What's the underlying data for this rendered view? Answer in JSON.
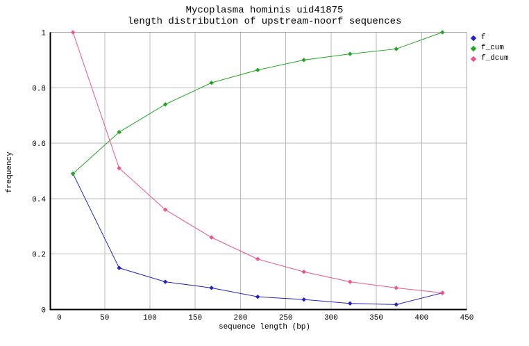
{
  "chart_data": {
    "type": "line",
    "title_line1": "Mycoplasma hominis uid41875",
    "title_line2": "length distribution of upstream-noorf sequences",
    "xlabel": "sequence length (bp)",
    "ylabel": "frequency",
    "xlim": [
      -10,
      450
    ],
    "ylim": [
      0,
      1
    ],
    "xticks": [
      0,
      50,
      100,
      150,
      200,
      250,
      300,
      350,
      400,
      450
    ],
    "yticks": [
      0,
      0.2,
      0.4,
      0.6,
      0.8,
      1
    ],
    "grid": true,
    "legend_position": "top-right-outside",
    "x": [
      15,
      66,
      117,
      168,
      219,
      270,
      321,
      372,
      423
    ],
    "series": [
      {
        "name": "f",
        "color": "#2323cb",
        "values": [
          0.49,
          0.15,
          0.1,
          0.078,
          0.046,
          0.036,
          0.022,
          0.018,
          0.06
        ]
      },
      {
        "name": "f_cum",
        "color": "#23a623",
        "values": [
          0.49,
          0.64,
          0.74,
          0.818,
          0.864,
          0.9,
          0.922,
          0.94,
          1.0
        ]
      },
      {
        "name": "f_dcum",
        "color": "#ef5585",
        "values": [
          1.0,
          0.51,
          0.36,
          0.26,
          0.182,
          0.136,
          0.1,
          0.078,
          0.06
        ]
      }
    ],
    "colors": {
      "grid": "#b9b9b9",
      "border": "#a9a9a9",
      "axis": "#000000",
      "text": "#000000",
      "background": "#ffffff"
    }
  }
}
